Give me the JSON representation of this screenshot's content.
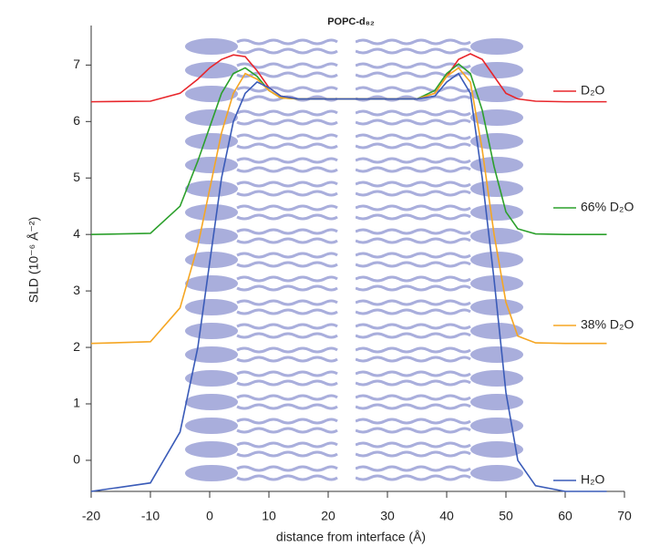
{
  "chart_data": {
    "type": "line",
    "title": "POPC-d₈₂",
    "x_label": "distance from interface (Å)",
    "y_label": "SLD (10⁻⁶ Å⁻²)",
    "x": [
      -20,
      -10,
      -5,
      -2,
      0,
      2,
      4,
      6,
      8,
      10,
      12,
      15,
      20,
      25,
      30,
      35,
      38,
      40,
      42,
      44,
      46,
      48,
      50,
      52,
      55,
      60,
      67
    ],
    "xlim": [
      -20,
      70
    ],
    "xticks": [
      -20,
      -10,
      0,
      10,
      20,
      30,
      40,
      50,
      60,
      70
    ],
    "ylim": [
      -0.55,
      7.7
    ],
    "yticks": [
      0,
      1,
      2,
      3,
      4,
      5,
      6,
      7
    ],
    "series": [
      {
        "name": "D₂O",
        "color": "#e8262b",
        "values": [
          6.35,
          6.36,
          6.5,
          6.75,
          6.95,
          7.1,
          7.18,
          7.15,
          6.9,
          6.6,
          6.45,
          6.4,
          6.4,
          6.4,
          6.4,
          6.4,
          6.5,
          6.8,
          7.1,
          7.2,
          7.1,
          6.8,
          6.5,
          6.4,
          6.36,
          6.35,
          6.35
        ]
      },
      {
        "name": "66% D₂O",
        "color": "#2ca02c",
        "values": [
          4.0,
          4.02,
          4.5,
          5.3,
          5.9,
          6.5,
          6.85,
          6.95,
          6.8,
          6.55,
          6.42,
          6.4,
          6.4,
          6.4,
          6.4,
          6.4,
          6.55,
          6.85,
          7.02,
          6.85,
          6.2,
          5.2,
          4.4,
          4.1,
          4.01,
          4.0,
          4.0
        ]
      },
      {
        "name": "38% D₂O",
        "color": "#f5a623",
        "values": [
          2.07,
          2.1,
          2.7,
          3.8,
          4.8,
          5.8,
          6.5,
          6.85,
          6.75,
          6.55,
          6.42,
          6.4,
          6.4,
          6.4,
          6.4,
          6.4,
          6.5,
          6.8,
          6.95,
          6.7,
          5.5,
          4.0,
          2.8,
          2.2,
          2.08,
          2.07,
          2.07
        ]
      },
      {
        "name": "H₂O",
        "color": "#3a5bb8",
        "values": [
          -0.55,
          -0.4,
          0.5,
          2.0,
          3.5,
          5.0,
          6.0,
          6.5,
          6.7,
          6.6,
          6.45,
          6.4,
          6.4,
          6.4,
          6.4,
          6.4,
          6.45,
          6.7,
          6.85,
          6.5,
          5.0,
          3.2,
          1.2,
          0.0,
          -0.45,
          -0.55,
          -0.55
        ]
      }
    ]
  }
}
